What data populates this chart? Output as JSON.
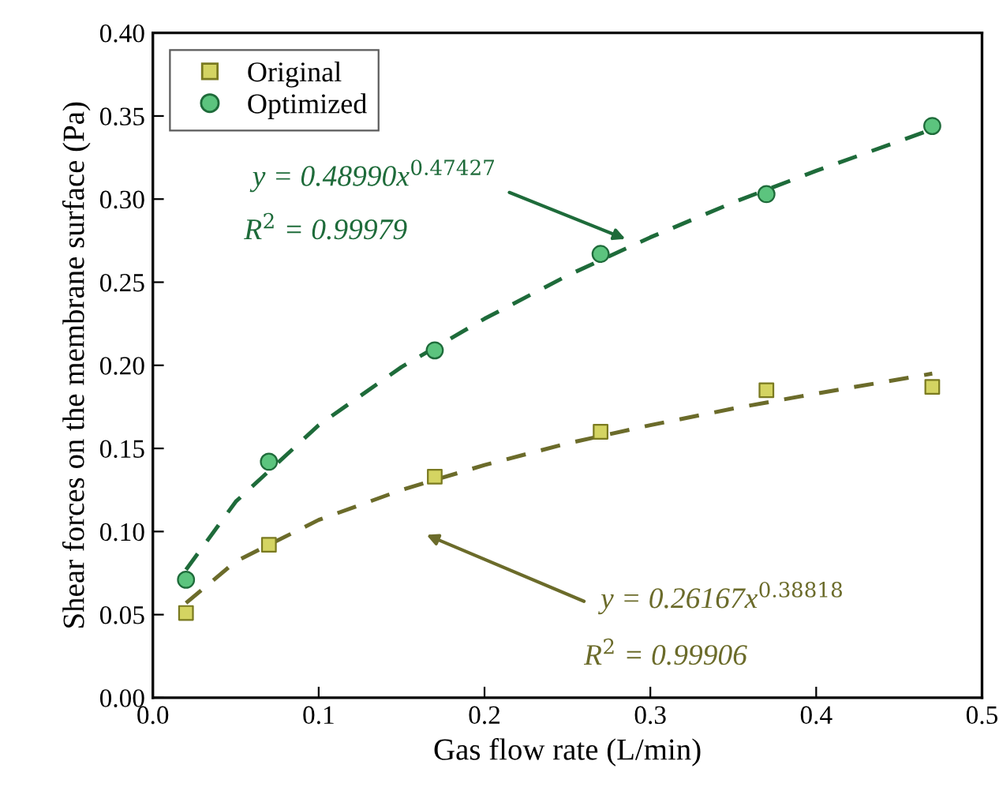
{
  "chart_data": {
    "type": "scatter",
    "xlabel": "Gas flow rate (L/min)",
    "ylabel": "Shear forces on the membrane surface (Pa)",
    "xlim": [
      0,
      0.5
    ],
    "xticks": [
      {
        "value": 0,
        "label": "0.0"
      },
      0.1,
      0.2,
      0.3,
      0.4,
      0.5
    ],
    "ylim": [
      0,
      0.4
    ],
    "yticks": [
      {
        "value": 0,
        "label": "0.00"
      },
      {
        "value": 0.05,
        "label": "0.05"
      },
      {
        "value": 0.1,
        "label": "0.10"
      },
      {
        "value": 0.15,
        "label": "0.15"
      },
      {
        "value": 0.2,
        "label": "0.20"
      },
      {
        "value": 0.25,
        "label": "0.25"
      },
      {
        "value": 0.3,
        "label": "0.30"
      },
      {
        "value": 0.35,
        "label": "0.35"
      },
      {
        "value": 0.4,
        "label": "0.40"
      }
    ],
    "x": [
      0.02,
      0.07,
      0.17,
      0.27,
      0.37,
      0.47
    ],
    "series": [
      {
        "name": "Original",
        "marker": "square",
        "color": "#d4d462",
        "values": [
          0.051,
          0.092,
          0.133,
          0.16,
          0.185,
          0.187
        ]
      },
      {
        "name": "Optimized",
        "marker": "circle",
        "color": "#5cc47e",
        "values": [
          0.071,
          0.142,
          0.209,
          0.267,
          0.303,
          0.344
        ]
      },
      {
        "type": "line",
        "line_style": "dashed",
        "color": "#6b6b2a",
        "x": [
          0.02,
          0.05,
          0.1,
          0.15,
          0.2,
          0.25,
          0.3,
          0.35,
          0.4,
          0.47
        ],
        "values": [
          0.057,
          0.082,
          0.107,
          0.125,
          0.14,
          0.153,
          0.164,
          0.174,
          0.183,
          0.195
        ]
      },
      {
        "type": "line",
        "line_style": "dashed",
        "color": "#1e6b3a",
        "x": [
          0.02,
          0.05,
          0.1,
          0.15,
          0.2,
          0.25,
          0.3,
          0.35,
          0.4,
          0.47
        ],
        "values": [
          0.077,
          0.118,
          0.164,
          0.199,
          0.228,
          0.254,
          0.277,
          0.298,
          0.317,
          0.342
        ]
      }
    ],
    "annotations": [
      "y = 0.48990x$^{0.47427}$",
      "R$^{2}$ = 0.99979",
      "y = 0.26167x$^{0.38818}$",
      "R$^{2}$ = 0.99906"
    ],
    "legend": "top left",
    "grid": false
  }
}
